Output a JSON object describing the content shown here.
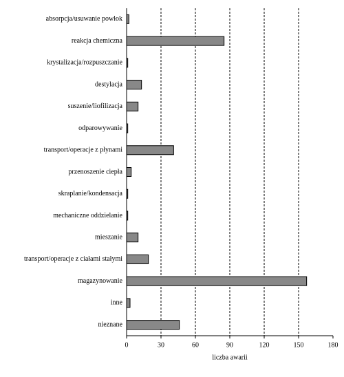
{
  "chart_data": {
    "type": "barh",
    "categories": [
      "absorpcja/usuwanie powłok",
      "reakcja chemiczna",
      "krystalizacja/rozpuszczanie",
      "destylacja",
      "suszenie/liofilizacja",
      "odparowywanie",
      "transport/operacje z płynami",
      "przenoszenie ciepła",
      "skraplanie/kondensacja",
      "mechaniczne oddzielanie",
      "mieszanie",
      "transport/operacje z ciałami stałymi",
      "magazynowanie",
      "inne",
      "nieznane"
    ],
    "values": [
      2,
      85,
      1,
      13,
      10,
      1,
      41,
      4,
      1,
      1,
      10,
      19,
      157,
      3,
      46
    ],
    "color": "#888888",
    "xlabel": "liczba awarii",
    "xlim": [
      0,
      180
    ],
    "xticks": [
      0,
      30,
      60,
      90,
      120,
      150,
      180
    ],
    "grid": true
  }
}
